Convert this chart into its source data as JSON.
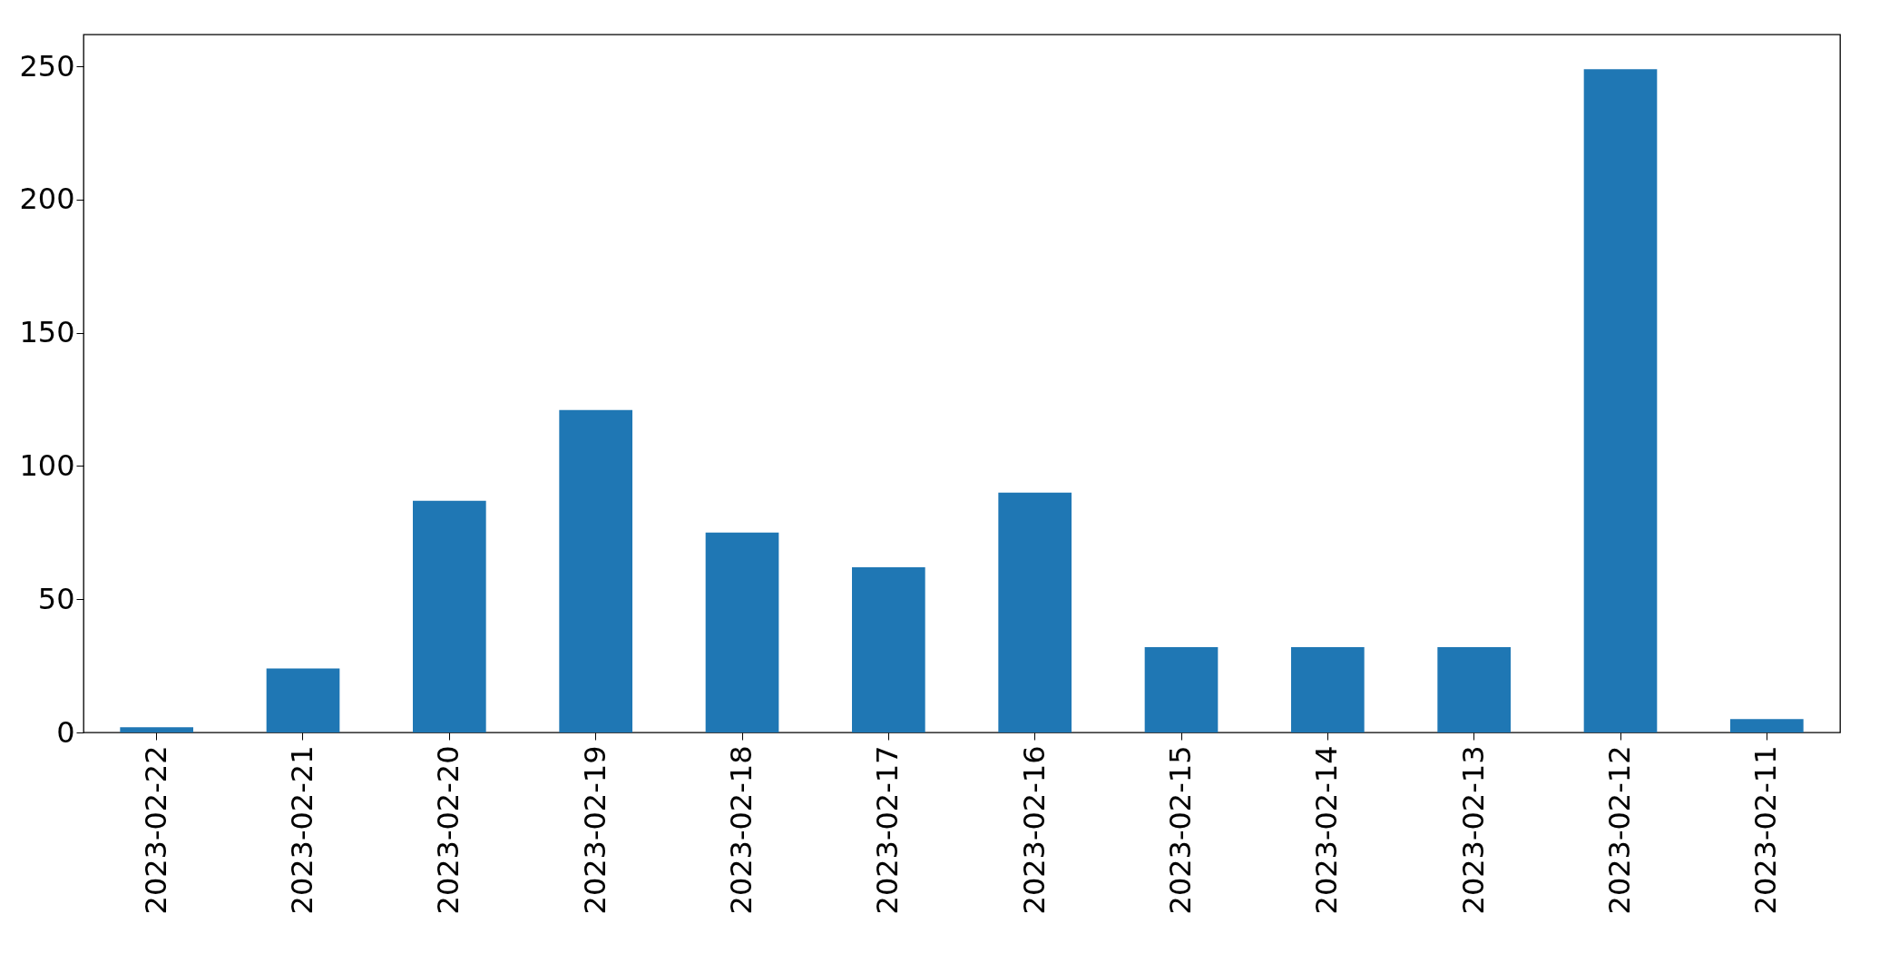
{
  "chart_data": {
    "type": "bar",
    "categories": [
      "2023-02-22",
      "2023-02-21",
      "2023-02-20",
      "2023-02-19",
      "2023-02-18",
      "2023-02-17",
      "2023-02-16",
      "2023-02-15",
      "2023-02-14",
      "2023-02-13",
      "2023-02-12",
      "2023-02-11"
    ],
    "series": [
      {
        "color": "#1f77b4",
        "values": [
          2,
          24,
          87,
          121,
          75,
          62,
          90,
          32,
          32,
          32,
          249,
          5
        ]
      }
    ],
    "ylim": [
      0,
      262
    ],
    "yticks": [
      0,
      50,
      100,
      150,
      200,
      250
    ],
    "grid": false
  }
}
